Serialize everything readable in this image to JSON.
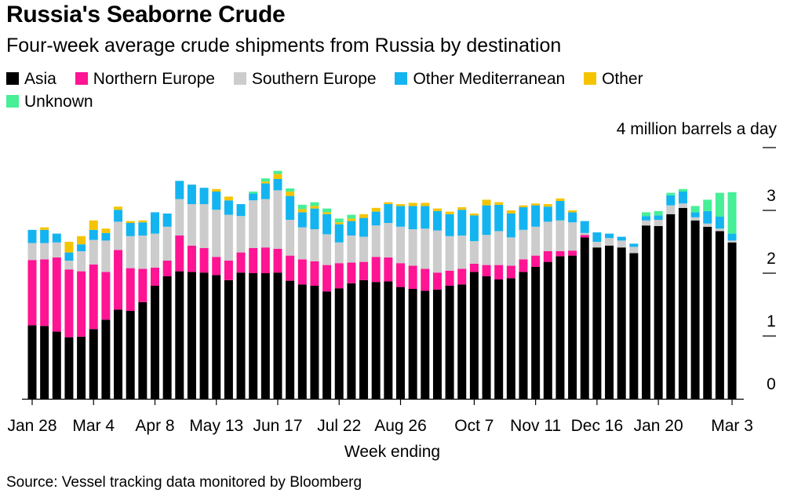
{
  "title": "Russia's Seaborne Crude",
  "subtitle": "Four-week average crude shipments from Russia by destination",
  "unit_label": "4 million barrels a day",
  "source": "Source: Vessel tracking data monitored by Bloomberg",
  "legend": [
    {
      "label": "Asia",
      "color": "#000000"
    },
    {
      "label": "Northern Europe",
      "color": "#ff1493"
    },
    {
      "label": "Southern Europe",
      "color": "#cccccc"
    },
    {
      "label": "Other Mediterranean",
      "color": "#14b4f0"
    },
    {
      "label": "Other",
      "color": "#f5c400"
    },
    {
      "label": "Unknown",
      "color": "#47ef96"
    }
  ],
  "chart_data": {
    "type": "bar",
    "stacked": true,
    "xlabel": "Week ending",
    "ylabel": "4 million barrels a day",
    "ylim": [
      0,
      4
    ],
    "yticks": [
      "0",
      "1",
      "2",
      "3",
      ""
    ],
    "grid": false,
    "legend_position": "top",
    "x_tick_labels": [
      {
        "label": "Jan 28",
        "index": 0
      },
      {
        "label": "Mar 4",
        "index": 5
      },
      {
        "label": "Apr 8",
        "index": 10
      },
      {
        "label": "May 13",
        "index": 15
      },
      {
        "label": "Jun 17",
        "index": 20
      },
      {
        "label": "Jul 22",
        "index": 25
      },
      {
        "label": "Aug 26",
        "index": 30
      },
      {
        "label": "Oct 7",
        "index": 36
      },
      {
        "label": "Nov 11",
        "index": 41
      },
      {
        "label": "Dec 16",
        "index": 46
      },
      {
        "label": "Jan 20",
        "index": 51
      },
      {
        "label": "Mar 3",
        "index": 57
      }
    ],
    "series": [
      {
        "name": "Asia",
        "color": "#000000",
        "values": [
          1.17,
          1.16,
          1.07,
          0.98,
          0.99,
          1.11,
          1.26,
          1.42,
          1.4,
          1.54,
          1.8,
          1.95,
          2.03,
          2.02,
          2.01,
          1.97,
          1.89,
          2.01,
          2.0,
          2.0,
          2.01,
          1.88,
          1.82,
          1.8,
          1.71,
          1.76,
          1.84,
          1.89,
          1.86,
          1.87,
          1.78,
          1.75,
          1.72,
          1.74,
          1.8,
          1.82,
          2.02,
          1.95,
          1.9,
          1.92,
          2.02,
          2.1,
          2.18,
          2.27,
          2.28,
          2.57,
          2.41,
          2.44,
          2.41,
          2.32,
          2.76,
          2.75,
          2.94,
          3.04,
          2.84,
          2.74,
          2.67,
          2.49
        ]
      },
      {
        "name": "Northern Europe",
        "color": "#ff1493",
        "values": [
          1.04,
          1.06,
          1.18,
          1.08,
          1.04,
          1.03,
          0.76,
          0.95,
          0.68,
          0.53,
          0.29,
          0.25,
          0.57,
          0.42,
          0.39,
          0.29,
          0.31,
          0.32,
          0.4,
          0.41,
          0.38,
          0.4,
          0.4,
          0.39,
          0.42,
          0.4,
          0.33,
          0.29,
          0.4,
          0.38,
          0.38,
          0.37,
          0.35,
          0.27,
          0.24,
          0.25,
          0.13,
          0.18,
          0.23,
          0.2,
          0.2,
          0.18,
          0.17,
          0.08,
          0.08,
          0.04,
          0,
          0,
          0,
          0,
          0,
          0,
          0,
          0,
          0,
          0,
          0,
          0
        ]
      },
      {
        "name": "Southern Europe",
        "color": "#cccccc",
        "values": [
          0.27,
          0.26,
          0.24,
          0.14,
          0.32,
          0.39,
          0.5,
          0.45,
          0.51,
          0.53,
          0.54,
          0.54,
          0.58,
          0.66,
          0.7,
          0.75,
          0.73,
          0.58,
          0.76,
          0.77,
          0.93,
          0.57,
          0.51,
          0.51,
          0.49,
          0.33,
          0.43,
          0.4,
          0.5,
          0.55,
          0.58,
          0.58,
          0.64,
          0.67,
          0.55,
          0.53,
          0.36,
          0.48,
          0.54,
          0.45,
          0.47,
          0.46,
          0.47,
          0.49,
          0.45,
          0.03,
          0.09,
          0.12,
          0.11,
          0.1,
          0.08,
          0.1,
          0.14,
          0.07,
          0.05,
          0.05,
          0.04,
          0.03
        ]
      },
      {
        "name": "Other Mediterranean",
        "color": "#14b4f0",
        "values": [
          0.21,
          0.21,
          0.14,
          0.13,
          0.11,
          0.16,
          0.12,
          0.19,
          0.21,
          0.21,
          0.34,
          0.21,
          0.29,
          0.31,
          0.26,
          0.29,
          0.23,
          0.19,
          0.11,
          0.25,
          0.18,
          0.38,
          0.24,
          0.33,
          0.32,
          0.29,
          0.23,
          0.3,
          0.22,
          0.3,
          0.33,
          0.37,
          0.36,
          0.31,
          0.35,
          0.41,
          0.41,
          0.47,
          0.42,
          0.38,
          0.36,
          0.34,
          0.24,
          0.31,
          0.16,
          0.19,
          0.15,
          0.07,
          0.06,
          0.05,
          0.07,
          0.07,
          0.16,
          0.19,
          0.08,
          0.2,
          0.19,
          0.11
        ]
      },
      {
        "name": "Other",
        "color": "#f5c400",
        "values": [
          0,
          0.04,
          0,
          0.17,
          0.13,
          0.15,
          0.07,
          0.05,
          0.03,
          0.03,
          0,
          0,
          0,
          0,
          0,
          0.04,
          0.06,
          0,
          0,
          0.03,
          0.08,
          0.07,
          0.05,
          0.04,
          0.03,
          0.03,
          0.04,
          0.06,
          0.06,
          0.03,
          0.03,
          0.05,
          0.05,
          0.04,
          0.04,
          0.04,
          0.03,
          0.09,
          0.04,
          0.05,
          0.03,
          0.03,
          0.04,
          0.04,
          0.03,
          0,
          0,
          0,
          0,
          0,
          0,
          0,
          0,
          0,
          0,
          0,
          0,
          0
        ]
      },
      {
        "name": "Unknown",
        "color": "#47ef96",
        "values": [
          0,
          0,
          0,
          0,
          0,
          0,
          0,
          0,
          0,
          0,
          0,
          0,
          0,
          0,
          0,
          0,
          0,
          0,
          0.03,
          0.05,
          0.05,
          0.05,
          0.07,
          0.06,
          0.06,
          0.06,
          0.06,
          0,
          0,
          0,
          0,
          0,
          0,
          0,
          0,
          0,
          0,
          0,
          0,
          0,
          0,
          0,
          0,
          0,
          0,
          0,
          0,
          0,
          0,
          0,
          0.06,
          0.07,
          0.04,
          0.04,
          0.1,
          0.18,
          0.38,
          0.66
        ]
      }
    ]
  }
}
